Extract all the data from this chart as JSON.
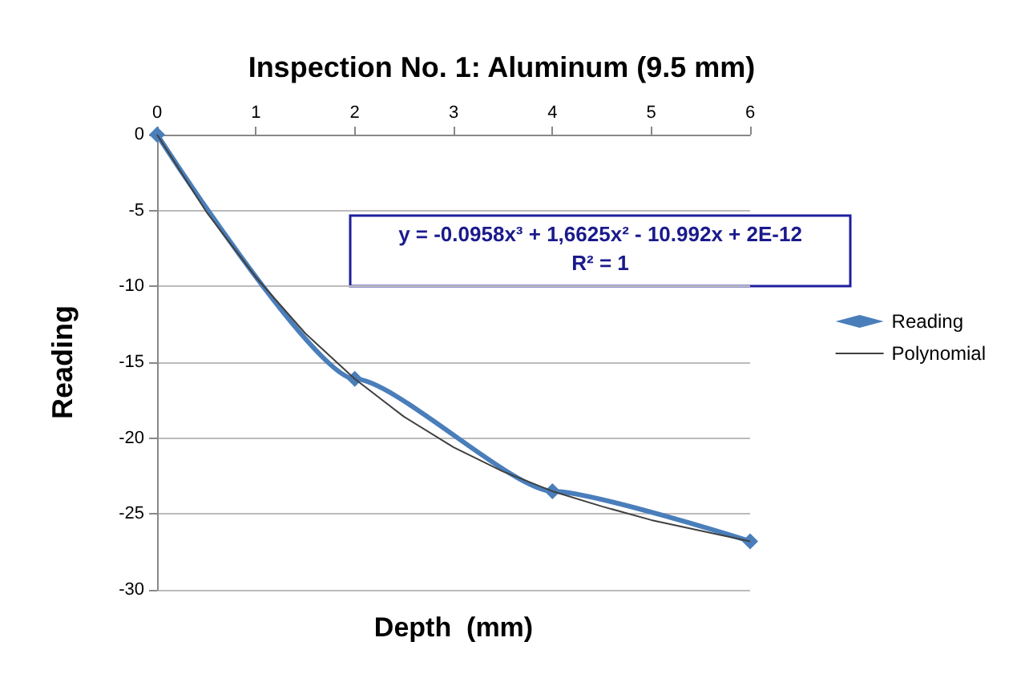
{
  "chart_data": {
    "type": "line",
    "title": "Inspection No. 1: Aluminum (9.5 mm)",
    "xlabel": "Depth  (mm)",
    "ylabel": "Reading",
    "annotations": [
      "y = -0.0958x³ + 1,6625x² - 10.992x + 2E-12",
      "R² = 1"
    ],
    "series": [
      {
        "name": "Reading",
        "color": "#4a7ebb",
        "x": [
          0,
          2,
          4,
          6
        ],
        "values": [
          0,
          -16.1,
          -23.5,
          -26.8
        ],
        "marker": "diamond"
      },
      {
        "name": "Polynomial",
        "color": "#404040",
        "marker": "none",
        "x": [
          0,
          0.5,
          1,
          1.5,
          2,
          2.5,
          3,
          3.5,
          4,
          4.5,
          5,
          5.5,
          6
        ],
        "values": [
          0,
          -5.1,
          -9.4,
          -13.1,
          -16.1,
          -18.6,
          -20.6,
          -22.2,
          -23.5,
          -24.5,
          -25.4,
          -26.1,
          -26.8
        ]
      }
    ],
    "xlim": [
      0,
      6
    ],
    "xticks": [
      0,
      1,
      2,
      3,
      4,
      5,
      6
    ],
    "ylim": [
      -30,
      0
    ],
    "yticks": [
      -30,
      -25,
      -20,
      -15,
      -10,
      -5,
      0
    ],
    "grid": "y",
    "legend": "right"
  }
}
